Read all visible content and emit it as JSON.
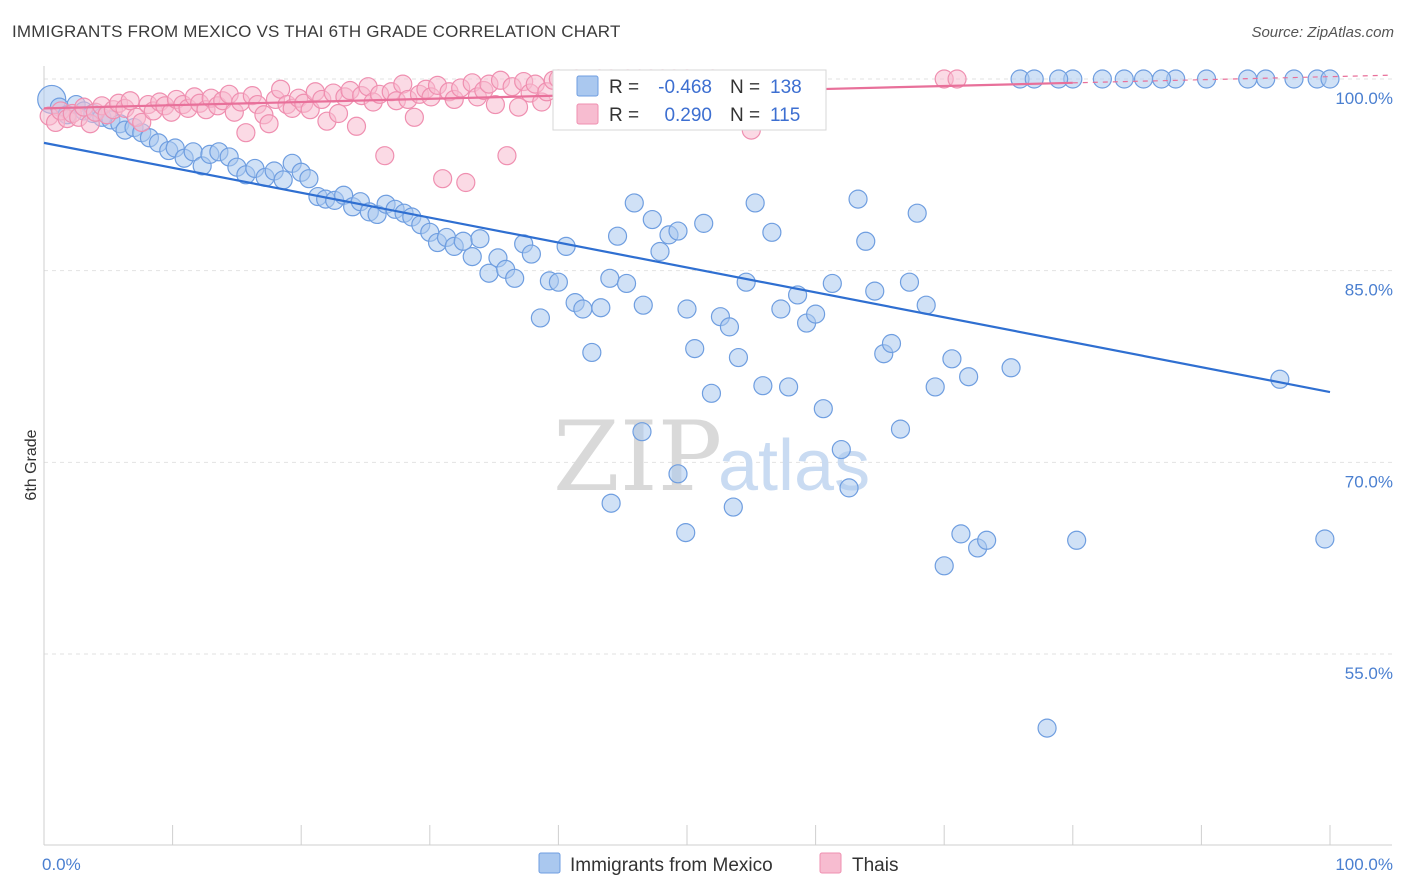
{
  "title": "IMMIGRANTS FROM MEXICO VS THAI 6TH GRADE CORRELATION CHART",
  "source": "Source: ZipAtlas.com",
  "watermark": {
    "zip": "ZIP",
    "atlas": "atlas"
  },
  "legend": {
    "r_label": "R =",
    "n_label": "N =",
    "series": [
      {
        "r": "-0.468",
        "n": "138"
      },
      {
        "r": "0.290",
        "n": "115"
      }
    ]
  },
  "colors": {
    "mexico_fill": "#aac8ef",
    "mexico_stroke": "#6f9ee0",
    "mexico_line": "#2f6fd1",
    "thai_fill": "#f7bcd0",
    "thai_stroke": "#ef8fb0",
    "thai_line": "#e8709a",
    "grid": "#e2e2e2",
    "axis_text": "#4a7fd0"
  },
  "chart_data": {
    "type": "scatter",
    "xlabel": "",
    "ylabel": "6th Grade",
    "xlim": [
      0,
      100
    ],
    "ylim": [
      39.5,
      101.5
    ],
    "x_ticks": [
      "0.0%",
      "100.0%"
    ],
    "y_ticks": [
      {
        "value": 100,
        "label": "100.0%"
      },
      {
        "value": 85,
        "label": "85.0%"
      },
      {
        "value": 70,
        "label": "70.0%"
      },
      {
        "value": 55,
        "label": "55.0%"
      }
    ],
    "grid": true,
    "legend_position": "bottom",
    "series": [
      {
        "name": "Immigrants from Mexico",
        "trend": {
          "x": [
            0,
            100
          ],
          "y": [
            95.0,
            75.5
          ]
        },
        "points": [
          [
            0.6,
            98.4
          ],
          [
            1.2,
            97.8
          ],
          [
            1.8,
            97.2
          ],
          [
            2.5,
            98.0
          ],
          [
            3.1,
            97.5
          ],
          [
            3.8,
            97.3
          ],
          [
            4.5,
            97.0
          ],
          [
            5.2,
            96.8
          ],
          [
            5.9,
            96.5
          ],
          [
            6.3,
            96.0
          ],
          [
            7.0,
            96.2
          ],
          [
            7.6,
            95.8
          ],
          [
            8.2,
            95.4
          ],
          [
            8.9,
            95.0
          ],
          [
            9.7,
            94.4
          ],
          [
            10.2,
            94.6
          ],
          [
            10.9,
            93.8
          ],
          [
            11.6,
            94.3
          ],
          [
            12.3,
            93.2
          ],
          [
            12.9,
            94.1
          ],
          [
            13.6,
            94.3
          ],
          [
            14.4,
            93.9
          ],
          [
            15.0,
            93.1
          ],
          [
            15.7,
            92.5
          ],
          [
            16.4,
            93.0
          ],
          [
            17.2,
            92.3
          ],
          [
            17.9,
            92.8
          ],
          [
            18.6,
            92.1
          ],
          [
            19.3,
            93.4
          ],
          [
            20.0,
            92.7
          ],
          [
            20.6,
            92.2
          ],
          [
            21.3,
            90.8
          ],
          [
            21.9,
            90.6
          ],
          [
            22.6,
            90.5
          ],
          [
            23.3,
            90.9
          ],
          [
            24.0,
            90.0
          ],
          [
            24.6,
            90.4
          ],
          [
            25.3,
            89.6
          ],
          [
            25.9,
            89.4
          ],
          [
            26.6,
            90.2
          ],
          [
            27.3,
            89.8
          ],
          [
            28.0,
            89.5
          ],
          [
            28.6,
            89.2
          ],
          [
            29.3,
            88.6
          ],
          [
            30.0,
            88.0
          ],
          [
            30.6,
            87.2
          ],
          [
            31.3,
            87.6
          ],
          [
            31.9,
            86.9
          ],
          [
            32.6,
            87.3
          ],
          [
            33.3,
            86.1
          ],
          [
            33.9,
            87.5
          ],
          [
            34.6,
            84.8
          ],
          [
            35.3,
            86.0
          ],
          [
            35.9,
            85.1
          ],
          [
            36.6,
            84.4
          ],
          [
            37.3,
            87.1
          ],
          [
            37.9,
            86.3
          ],
          [
            38.6,
            81.3
          ],
          [
            39.3,
            84.2
          ],
          [
            40.0,
            84.1
          ],
          [
            40.6,
            86.9
          ],
          [
            41.3,
            82.5
          ],
          [
            41.9,
            82.0
          ],
          [
            42.6,
            78.6
          ],
          [
            43.3,
            82.1
          ],
          [
            44.0,
            84.4
          ],
          [
            44.6,
            87.7
          ],
          [
            45.3,
            84.0
          ],
          [
            45.9,
            90.3
          ],
          [
            46.6,
            82.3
          ],
          [
            47.3,
            89.0
          ],
          [
            47.9,
            86.5
          ],
          [
            48.6,
            87.8
          ],
          [
            49.3,
            88.1
          ],
          [
            50.0,
            82.0
          ],
          [
            50.6,
            78.9
          ],
          [
            51.3,
            88.7
          ],
          [
            51.9,
            75.4
          ],
          [
            52.6,
            81.4
          ],
          [
            53.3,
            80.6
          ],
          [
            54.0,
            78.2
          ],
          [
            54.6,
            84.1
          ],
          [
            55.3,
            90.3
          ],
          [
            55.9,
            76.0
          ],
          [
            56.6,
            88.0
          ],
          [
            57.3,
            82.0
          ],
          [
            57.9,
            75.9
          ],
          [
            58.6,
            83.1
          ],
          [
            59.3,
            80.9
          ],
          [
            60.0,
            81.6
          ],
          [
            60.6,
            74.2
          ],
          [
            61.3,
            84.0
          ],
          [
            62.0,
            71.0
          ],
          [
            62.6,
            68.0
          ],
          [
            63.3,
            90.6
          ],
          [
            63.9,
            87.3
          ],
          [
            64.6,
            83.4
          ],
          [
            65.3,
            78.5
          ],
          [
            65.9,
            79.3
          ],
          [
            66.6,
            72.6
          ],
          [
            67.3,
            84.1
          ],
          [
            67.9,
            89.5
          ],
          [
            68.6,
            82.3
          ],
          [
            69.3,
            75.9
          ],
          [
            70.0,
            61.9
          ],
          [
            70.6,
            78.1
          ],
          [
            71.3,
            64.4
          ],
          [
            71.9,
            76.7
          ],
          [
            72.6,
            63.3
          ],
          [
            73.3,
            63.9
          ],
          [
            78.0,
            49.2
          ],
          [
            80.3,
            63.9
          ],
          [
            96.1,
            76.5
          ],
          [
            99.6,
            64.0
          ],
          [
            49.3,
            69.1
          ],
          [
            49.9,
            64.5
          ],
          [
            44.1,
            66.8
          ],
          [
            46.5,
            72.4
          ],
          [
            53.6,
            66.5
          ],
          [
            75.2,
            77.4
          ],
          [
            75.9,
            100.0
          ],
          [
            77.0,
            100.0
          ],
          [
            80.0,
            100.0
          ],
          [
            82.3,
            100.0
          ],
          [
            85.5,
            100.0
          ],
          [
            88.0,
            100.0
          ],
          [
            93.6,
            100.0
          ],
          [
            97.2,
            100.0
          ],
          [
            99.0,
            100.0
          ],
          [
            100.0,
            100.0
          ],
          [
            84.0,
            100.0
          ],
          [
            78.9,
            100.0
          ],
          [
            86.9,
            100.0
          ],
          [
            90.4,
            100.0
          ],
          [
            95.0,
            100.0
          ]
        ]
      },
      {
        "name": "Thais",
        "trend": {
          "x": [
            0,
            80
          ],
          "y": [
            97.7,
            99.7
          ]
        },
        "points": [
          [
            0.4,
            97.1
          ],
          [
            0.9,
            96.6
          ],
          [
            1.3,
            97.5
          ],
          [
            1.8,
            96.9
          ],
          [
            2.2,
            97.3
          ],
          [
            2.7,
            97.0
          ],
          [
            3.1,
            97.8
          ],
          [
            3.6,
            96.5
          ],
          [
            4.0,
            97.4
          ],
          [
            4.5,
            97.9
          ],
          [
            4.9,
            97.2
          ],
          [
            5.4,
            97.6
          ],
          [
            5.8,
            98.1
          ],
          [
            6.3,
            97.7
          ],
          [
            6.7,
            98.3
          ],
          [
            7.2,
            97.0
          ],
          [
            7.6,
            96.6
          ],
          [
            8.1,
            98.0
          ],
          [
            8.5,
            97.5
          ],
          [
            9.0,
            98.2
          ],
          [
            9.4,
            97.9
          ],
          [
            9.9,
            97.4
          ],
          [
            10.3,
            98.4
          ],
          [
            10.8,
            98.0
          ],
          [
            11.2,
            97.7
          ],
          [
            11.7,
            98.6
          ],
          [
            12.1,
            98.1
          ],
          [
            12.6,
            97.6
          ],
          [
            13.0,
            98.5
          ],
          [
            13.5,
            97.9
          ],
          [
            13.9,
            98.3
          ],
          [
            14.4,
            98.8
          ],
          [
            14.8,
            97.4
          ],
          [
            15.3,
            98.2
          ],
          [
            15.7,
            95.8
          ],
          [
            16.2,
            98.7
          ],
          [
            16.6,
            98.0
          ],
          [
            17.1,
            97.2
          ],
          [
            17.5,
            96.5
          ],
          [
            18.0,
            98.4
          ],
          [
            18.4,
            99.2
          ],
          [
            18.9,
            98.0
          ],
          [
            19.3,
            97.7
          ],
          [
            19.8,
            98.5
          ],
          [
            20.2,
            98.1
          ],
          [
            20.7,
            97.6
          ],
          [
            21.1,
            99.0
          ],
          [
            21.6,
            98.4
          ],
          [
            22.0,
            96.7
          ],
          [
            22.5,
            98.9
          ],
          [
            22.9,
            97.3
          ],
          [
            23.4,
            98.6
          ],
          [
            23.8,
            99.1
          ],
          [
            24.3,
            96.3
          ],
          [
            24.7,
            98.7
          ],
          [
            25.2,
            99.4
          ],
          [
            25.6,
            98.2
          ],
          [
            26.1,
            98.8
          ],
          [
            26.5,
            94.0
          ],
          [
            27.0,
            99.0
          ],
          [
            27.4,
            98.3
          ],
          [
            27.9,
            99.6
          ],
          [
            28.3,
            98.4
          ],
          [
            28.8,
            97.0
          ],
          [
            29.2,
            98.8
          ],
          [
            29.7,
            99.2
          ],
          [
            30.1,
            98.6
          ],
          [
            30.6,
            99.5
          ],
          [
            31.0,
            92.2
          ],
          [
            31.5,
            99.0
          ],
          [
            31.9,
            98.4
          ],
          [
            32.4,
            99.3
          ],
          [
            32.8,
            91.9
          ],
          [
            33.3,
            99.7
          ],
          [
            33.7,
            98.6
          ],
          [
            34.2,
            99.1
          ],
          [
            34.6,
            99.6
          ],
          [
            35.1,
            98.0
          ],
          [
            35.5,
            99.9
          ],
          [
            36.0,
            94.0
          ],
          [
            36.4,
            99.4
          ],
          [
            36.9,
            97.8
          ],
          [
            37.3,
            99.8
          ],
          [
            37.8,
            98.9
          ],
          [
            38.2,
            99.6
          ],
          [
            38.7,
            98.2
          ],
          [
            39.1,
            99.0
          ],
          [
            39.6,
            99.9
          ],
          [
            40.0,
            100.0
          ],
          [
            40.5,
            98.6
          ],
          [
            40.9,
            99.5
          ],
          [
            41.4,
            100.0
          ],
          [
            41.8,
            99.2
          ],
          [
            42.3,
            98.8
          ],
          [
            42.7,
            99.7
          ],
          [
            43.2,
            100.0
          ],
          [
            43.6,
            99.4
          ],
          [
            44.1,
            100.0
          ],
          [
            44.5,
            99.8
          ],
          [
            45.0,
            98.7
          ],
          [
            45.4,
            100.0
          ],
          [
            45.9,
            99.6
          ],
          [
            46.3,
            100.0
          ],
          [
            46.8,
            99.1
          ],
          [
            47.2,
            100.0
          ],
          [
            47.7,
            99.7
          ],
          [
            48.1,
            100.0
          ],
          [
            48.6,
            99.4
          ],
          [
            49.0,
            100.0
          ],
          [
            49.5,
            99.9
          ],
          [
            50.0,
            100.0
          ],
          [
            51.0,
            99.5
          ],
          [
            52.0,
            100.0
          ],
          [
            55.0,
            96.0
          ],
          [
            70.0,
            100.0
          ],
          [
            71.0,
            100.0
          ]
        ]
      }
    ]
  },
  "bottom_legend": [
    "Immigrants from Mexico",
    "Thais"
  ]
}
